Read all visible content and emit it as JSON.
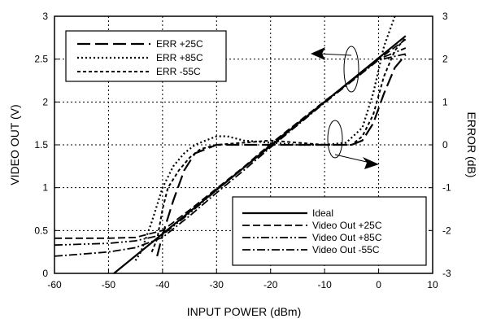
{
  "chart_data": {
    "type": "line",
    "xlabel": "INPUT POWER (dBm)",
    "ylabel": "VIDEO OUT (V)",
    "y2label": "ERROR (dB)",
    "xlim": [
      -60,
      10
    ],
    "ylim": [
      0,
      3
    ],
    "y2lim": [
      -3,
      3
    ],
    "x_ticks": [
      -60,
      -50,
      -40,
      -30,
      -20,
      -10,
      0,
      10
    ],
    "y_ticks": [
      "0",
      "0.5",
      "1",
      "1.5",
      "2",
      "2.5",
      "3"
    ],
    "y2_ticks": [
      "-3",
      "-2",
      "-1",
      "0",
      "1",
      "2",
      "3"
    ],
    "grid": true,
    "legend_error": {
      "placement": "top-left",
      "entries": [
        "ERR +25C",
        "ERR +85C",
        "ERR -55C"
      ]
    },
    "legend_video": {
      "placement": "bottom-right",
      "entries": [
        "Ideal",
        "Video Out +25C",
        "Video Out +85C",
        "Video Out  -55C"
      ]
    },
    "series": [
      {
        "name": "Ideal",
        "axis": "left",
        "style": "solid",
        "points": [
          [
            -49,
            0
          ],
          [
            5,
            2.77
          ]
        ]
      },
      {
        "name": "Video Out +25C",
        "axis": "left",
        "style": "dash",
        "points": [
          [
            -60,
            0.41
          ],
          [
            -50,
            0.41
          ],
          [
            -45,
            0.42
          ],
          [
            -40,
            0.5
          ],
          [
            -35,
            0.74
          ],
          [
            -30,
            0.99
          ],
          [
            -25,
            1.24
          ],
          [
            -20,
            1.51
          ],
          [
            -15,
            1.76
          ],
          [
            -10,
            2.01
          ],
          [
            -5,
            2.25
          ],
          [
            0,
            2.5
          ],
          [
            5,
            2.73
          ]
        ]
      },
      {
        "name": "Video Out +85C",
        "axis": "left",
        "style": "dashdotdot",
        "points": [
          [
            -60,
            0.33
          ],
          [
            -50,
            0.35
          ],
          [
            -45,
            0.38
          ],
          [
            -40,
            0.45
          ],
          [
            -35,
            0.7
          ],
          [
            -30,
            0.97
          ],
          [
            -25,
            1.23
          ],
          [
            -20,
            1.5
          ],
          [
            -15,
            1.75
          ],
          [
            -10,
            2.0
          ],
          [
            -5,
            2.25
          ],
          [
            0,
            2.5
          ],
          [
            5,
            2.63
          ]
        ]
      },
      {
        "name": "Video Out  -55C",
        "axis": "left",
        "style": "dashdot",
        "points": [
          [
            -60,
            0.2
          ],
          [
            -50,
            0.25
          ],
          [
            -45,
            0.3
          ],
          [
            -40,
            0.42
          ],
          [
            -35,
            0.67
          ],
          [
            -30,
            0.94
          ],
          [
            -25,
            1.2
          ],
          [
            -20,
            1.47
          ],
          [
            -15,
            1.73
          ],
          [
            -10,
            1.99
          ],
          [
            -5,
            2.24
          ],
          [
            0,
            2.49
          ],
          [
            5,
            2.56
          ]
        ]
      },
      {
        "name": "ERR +25C",
        "axis": "right",
        "style": "longdash",
        "points": [
          [
            -41,
            -2.6
          ],
          [
            -40,
            -2.1
          ],
          [
            -38,
            -1.3
          ],
          [
            -36,
            -0.6
          ],
          [
            -34,
            -0.2
          ],
          [
            -32,
            -0.1
          ],
          [
            -30,
            0.0
          ],
          [
            -25,
            0.0
          ],
          [
            -20,
            0.0
          ],
          [
            -15,
            0.0
          ],
          [
            -10,
            0.0
          ],
          [
            -5,
            0.0
          ],
          [
            -3,
            0.1
          ],
          [
            -1,
            0.5
          ],
          [
            1,
            1.2
          ],
          [
            3,
            1.8
          ],
          [
            5,
            2.1
          ]
        ]
      },
      {
        "name": "ERR +85C",
        "axis": "right",
        "style": "dot",
        "points": [
          [
            -45,
            -2.7
          ],
          [
            -44,
            -2.5
          ],
          [
            -42,
            -1.8
          ],
          [
            -40,
            -1.0
          ],
          [
            -38,
            -0.5
          ],
          [
            -36,
            -0.2
          ],
          [
            -34,
            0.0
          ],
          [
            -32,
            0.1
          ],
          [
            -30,
            0.2
          ],
          [
            -28,
            0.2
          ],
          [
            -25,
            0.1
          ],
          [
            -20,
            0.05
          ],
          [
            -15,
            0.0
          ],
          [
            -10,
            0.0
          ],
          [
            -6,
            0.05
          ],
          [
            -3,
            0.4
          ],
          [
            -1,
            1.2
          ],
          [
            1,
            2.3
          ],
          [
            3,
            3.0
          ]
        ]
      },
      {
        "name": "ERR -55C",
        "axis": "right",
        "style": "shortdash",
        "points": [
          [
            -42,
            -2.5
          ],
          [
            -41,
            -2.2
          ],
          [
            -40,
            -1.5
          ],
          [
            -39,
            -1.0
          ],
          [
            -37,
            -0.6
          ],
          [
            -35,
            -0.3
          ],
          [
            -33,
            -0.1
          ],
          [
            -30,
            0.0
          ],
          [
            -25,
            0.05
          ],
          [
            -20,
            0.1
          ],
          [
            -15,
            0.05
          ],
          [
            -10,
            0.0
          ],
          [
            -7,
            0.0
          ],
          [
            -5,
            0.0
          ],
          [
            -3,
            0.2
          ],
          [
            -1,
            0.7
          ],
          [
            1,
            1.6
          ],
          [
            3,
            2.2
          ],
          [
            5,
            2.5
          ]
        ]
      }
    ]
  }
}
